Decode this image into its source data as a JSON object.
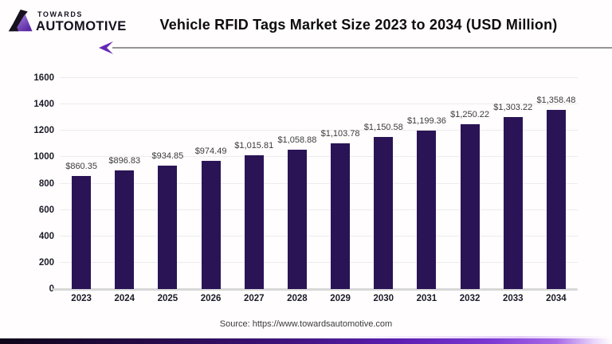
{
  "brand": {
    "top": "TOWARDS",
    "bottom": "AUTOMOTIVE"
  },
  "header": {
    "title": "Vehicle RFID Tags Market Size 2023 to 2034 (USD Million)"
  },
  "footer": {
    "source": "Source: https://www.towardsautomotive.com"
  },
  "colors": {
    "bar": "#2a1456",
    "accent_purple": "#6428b4",
    "gridline": "#eeebee",
    "axis_baseline": "#d8d8d8",
    "divider_line": "#959595",
    "strip_gradient_start": "#0f0619",
    "strip_gradient_end": "#a86ae6"
  },
  "chart_data": {
    "type": "bar",
    "title": "Vehicle RFID Tags Market Size 2023 to 2034 (USD Million)",
    "xlabel": "",
    "ylabel": "",
    "categories": [
      "2023",
      "2024",
      "2025",
      "2026",
      "2027",
      "2028",
      "2029",
      "2030",
      "2031",
      "2032",
      "2033",
      "2034"
    ],
    "values": [
      860.35,
      896.83,
      934.85,
      974.49,
      1015.81,
      1058.88,
      1103.78,
      1150.58,
      1199.36,
      1250.22,
      1303.22,
      1358.48
    ],
    "value_labels": [
      "$860.35",
      "$896.83",
      "$934.85",
      "$974.49",
      "$1,015.81",
      "$1,058.88",
      "$1,103.78",
      "$1,150.58",
      "$1,199.36",
      "$1,250.22",
      "$1,303.22",
      "$1,358.48"
    ],
    "ylim": [
      0,
      1600
    ],
    "yticks": [
      0,
      200,
      400,
      600,
      800,
      1000,
      1200,
      1400,
      1600
    ],
    "grid": true,
    "legend": null,
    "bar_color": "#2a1456"
  }
}
